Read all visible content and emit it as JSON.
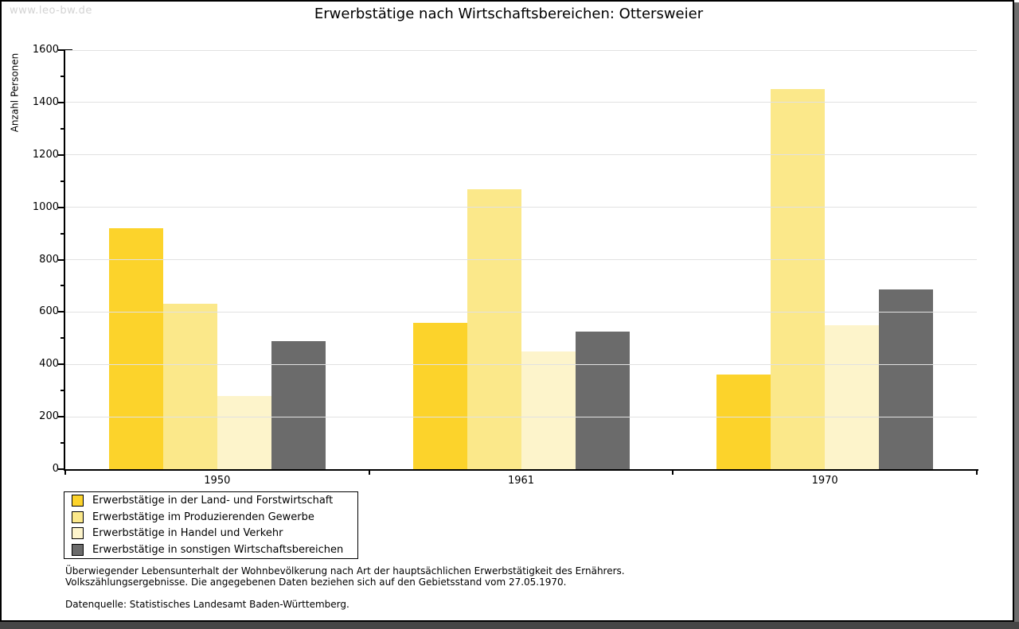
{
  "watermark": "www.leo-bw.de",
  "chart_data": {
    "type": "bar",
    "title": "Erwerbstätige nach Wirtschaftsbereichen: Ottersweier",
    "ylabel": "Anzahl Personen",
    "xlabel": "",
    "ylim": [
      0,
      1600
    ],
    "yticks": [
      0,
      200,
      400,
      600,
      800,
      1000,
      1200,
      1400,
      1600
    ],
    "minor_tick_step": 100,
    "grid": true,
    "legend_position": "bottom-left",
    "categories": [
      "1950",
      "1961",
      "1970"
    ],
    "series": [
      {
        "name": "Erwerbstätige in der Land- und Forstwirtschaft",
        "color": "#FCD32B",
        "values": [
          920,
          560,
          360
        ]
      },
      {
        "name": "Erwerbstätige im Produzierenden Gewerbe",
        "color": "#FBE88A",
        "values": [
          630,
          1070,
          1450
        ]
      },
      {
        "name": "Erwerbstätige in Handel und Verkehr",
        "color": "#FDF4CB",
        "values": [
          280,
          450,
          550
        ]
      },
      {
        "name": "Erwerbstätige in sonstigen Wirtschaftsbereichen",
        "color": "#6B6B6B",
        "values": [
          490,
          525,
          685
        ]
      }
    ]
  },
  "footnotes": {
    "line1": "Überwiegender Lebensunterhalt der Wohnbevölkerung nach Art der hauptsächlichen Erwerbstätigkeit des Ernährers.",
    "line2": "Volkszählungsergebnisse. Die angegebenen Daten beziehen sich auf den Gebietsstand vom 27.05.1970."
  },
  "source": "Datenquelle: Statistisches Landesamt Baden-Württemberg.",
  "colors": {
    "background": "#FFFFFF",
    "border": "#000000",
    "axis": "#000000",
    "grid": "#E1E1E1",
    "watermark": "#D3D3D3",
    "shadow_right": "#6E6E6E",
    "shadow_bottom": "#464646"
  }
}
